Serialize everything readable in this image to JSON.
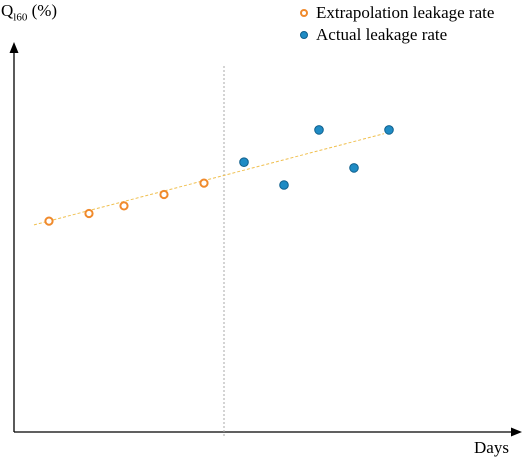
{
  "colors": {
    "extrapolation_stroke": "#f08a2c",
    "extrapolation_fill": "#ffffff",
    "actual_fill": "#1f8bc4",
    "actual_stroke": "#0f5f8c",
    "trendline": "#f0c050",
    "divider": "#aaaaaa",
    "axis": "#000000"
  },
  "chart_data": {
    "type": "scatter",
    "ylabel_main": "Q",
    "ylabel_sub": "l60",
    "ylabel_unit": " (%)",
    "xlabel": "Days",
    "xlim": [
      0,
      100
    ],
    "ylim": [
      0,
      100
    ],
    "legend_position": "top-right",
    "series": [
      {
        "name": "Extrapolation leakage rate",
        "style": "hollow-orange",
        "points": [
          {
            "x": 7,
            "y": 55.5
          },
          {
            "x": 15,
            "y": 57.5
          },
          {
            "x": 22,
            "y": 59.5
          },
          {
            "x": 30,
            "y": 62.5
          },
          {
            "x": 38,
            "y": 65.5
          }
        ]
      },
      {
        "name": "Actual leakage rate",
        "style": "filled-blue",
        "points": [
          {
            "x": 46,
            "y": 71
          },
          {
            "x": 54,
            "y": 65
          },
          {
            "x": 61,
            "y": 79.5
          },
          {
            "x": 68,
            "y": 69.5
          },
          {
            "x": 75,
            "y": 79.5
          }
        ]
      }
    ],
    "trendline": {
      "from": [
        4,
        54.5
      ],
      "to": [
        74,
        78.5
      ]
    },
    "divider_x": 42,
    "grid": false
  }
}
